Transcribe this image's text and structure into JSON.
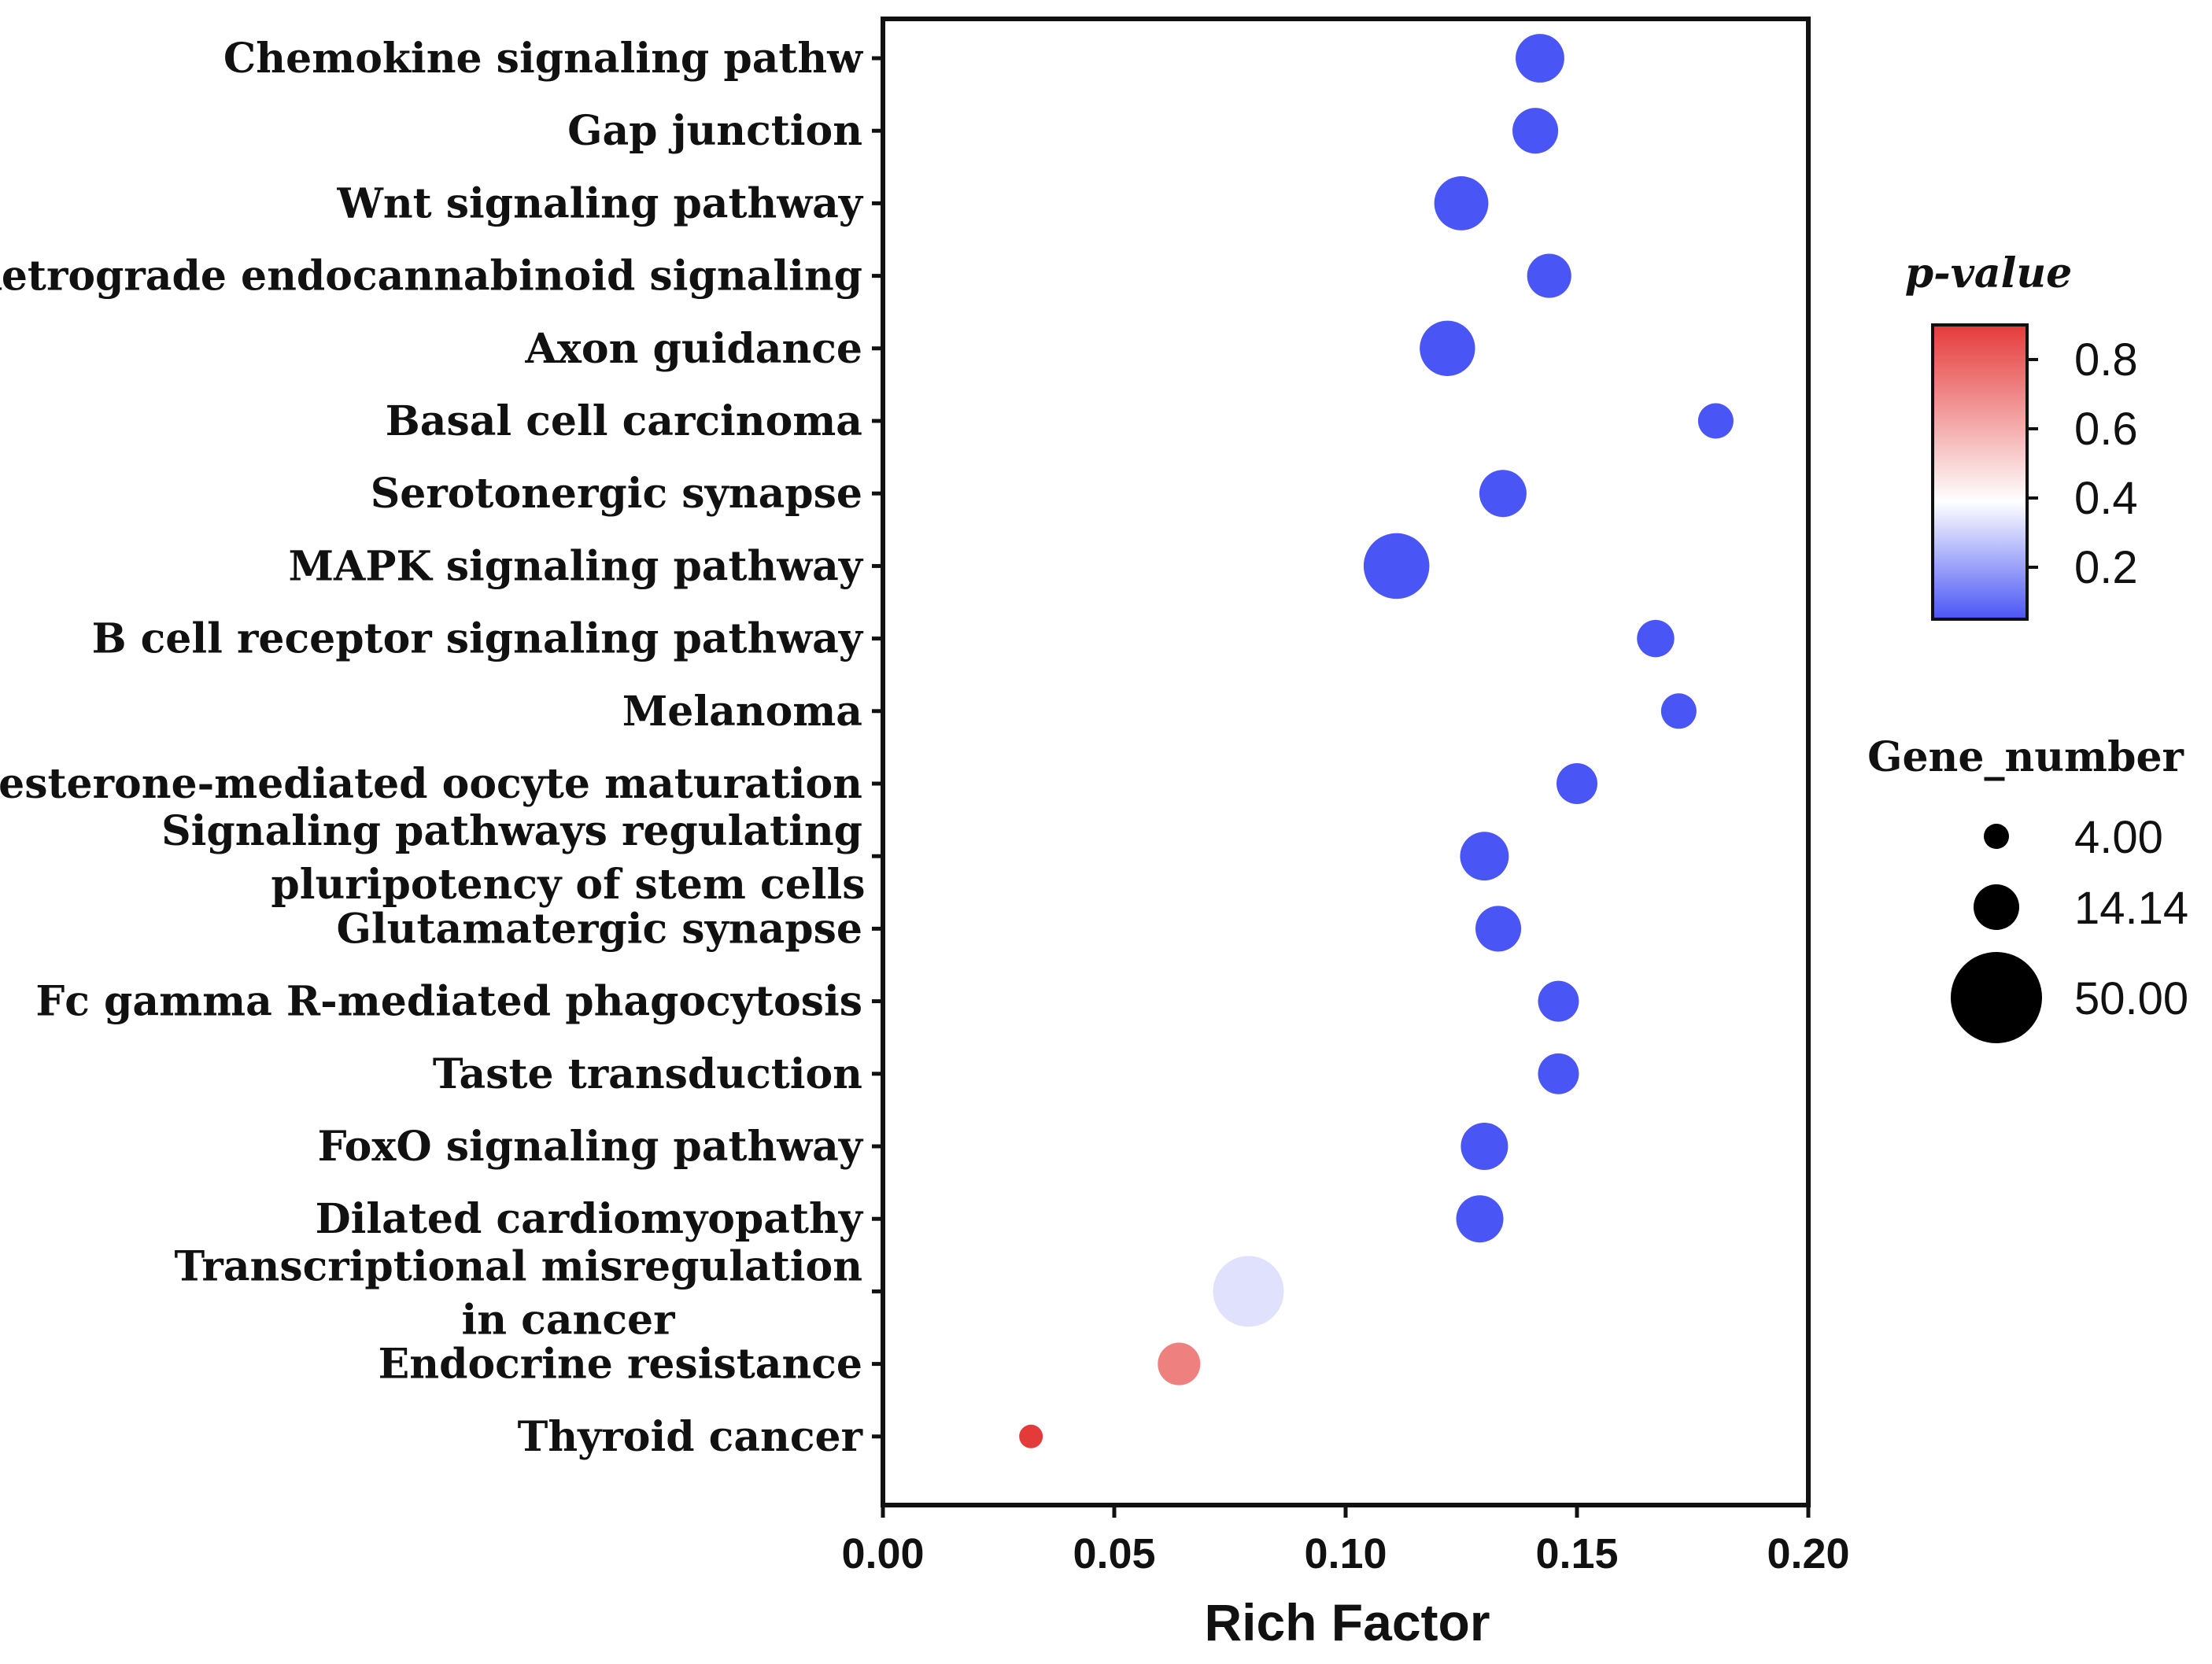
{
  "chart_data": {
    "type": "scatter",
    "subtype": "bubble",
    "xlabel": "Rich Factor",
    "xlim": [
      0,
      0.2
    ],
    "xticks": [
      "0.00",
      "0.05",
      "0.10",
      "0.15",
      "0.20"
    ],
    "categories": [
      {
        "lines": [
          "Chemokine signaling pathw"
        ],
        "rich_factor": 0.142,
        "p_value": 0.05,
        "gene_number": 17
      },
      {
        "lines": [
          "Gap junction"
        ],
        "rich_factor": 0.141,
        "p_value": 0.05,
        "gene_number": 15
      },
      {
        "lines": [
          "Wnt signaling pathway"
        ],
        "rich_factor": 0.125,
        "p_value": 0.05,
        "gene_number": 21
      },
      {
        "lines": [
          "Retrograde endocannabinoid signaling"
        ],
        "rich_factor": 0.144,
        "p_value": 0.05,
        "gene_number": 14
      },
      {
        "lines": [
          "Axon guidance"
        ],
        "rich_factor": 0.122,
        "p_value": 0.05,
        "gene_number": 22
      },
      {
        "lines": [
          "Basal cell carcinoma"
        ],
        "rich_factor": 0.18,
        "p_value": 0.05,
        "gene_number": 9
      },
      {
        "lines": [
          "Serotonergic synapse"
        ],
        "rich_factor": 0.134,
        "p_value": 0.05,
        "gene_number": 16
      },
      {
        "lines": [
          "MAPK signaling pathway"
        ],
        "rich_factor": 0.111,
        "p_value": 0.05,
        "gene_number": 31
      },
      {
        "lines": [
          "B cell receptor signaling pathway"
        ],
        "rich_factor": 0.167,
        "p_value": 0.05,
        "gene_number": 10
      },
      {
        "lines": [
          "Melanoma"
        ],
        "rich_factor": 0.172,
        "p_value": 0.05,
        "gene_number": 9
      },
      {
        "lines": [
          "Progesterone-mediated oocyte maturation"
        ],
        "rich_factor": 0.15,
        "p_value": 0.05,
        "gene_number": 12
      },
      {
        "lines": [
          "Signaling pathways regulating",
          "pluripotency of stem cells"
        ],
        "rich_factor": 0.13,
        "p_value": 0.05,
        "gene_number": 17
      },
      {
        "lines": [
          "Glutamatergic synapse"
        ],
        "rich_factor": 0.133,
        "p_value": 0.05,
        "gene_number": 15
      },
      {
        "lines": [
          "Fc gamma R-mediated phagocytosis"
        ],
        "rich_factor": 0.146,
        "p_value": 0.05,
        "gene_number": 12
      },
      {
        "lines": [
          "Taste transduction"
        ],
        "rich_factor": 0.146,
        "p_value": 0.05,
        "gene_number": 12
      },
      {
        "lines": [
          "FoxO signaling pathway"
        ],
        "rich_factor": 0.13,
        "p_value": 0.05,
        "gene_number": 16
      },
      {
        "lines": [
          "Dilated cardiomyopathy"
        ],
        "rich_factor": 0.129,
        "p_value": 0.05,
        "gene_number": 16
      },
      {
        "lines": [
          "Transcriptional misregulation",
          "in cancer"
        ],
        "rich_factor": 0.079,
        "p_value": 0.33,
        "gene_number": 36
      },
      {
        "lines": [
          "Endocrine resistance"
        ],
        "rich_factor": 0.064,
        "p_value": 0.72,
        "gene_number": 13
      },
      {
        "lines": [
          "Thyroid cancer"
        ],
        "rich_factor": 0.032,
        "p_value": 0.9,
        "gene_number": 4
      }
    ],
    "color_legend": {
      "title": "p-value",
      "range": [
        0.05,
        0.9
      ],
      "ticks": [
        {
          "value": 0.8,
          "label": "0.8"
        },
        {
          "value": 0.6,
          "label": "0.6"
        },
        {
          "value": 0.4,
          "label": "0.4"
        },
        {
          "value": 0.2,
          "label": "0.2"
        }
      ],
      "colors": {
        "high": "#e53a3a",
        "mid": "#ffffff",
        "low": "#4a55f5"
      }
    },
    "size_legend": {
      "title": "Gene_number",
      "entries": [
        {
          "value": 4,
          "label": "4.00"
        },
        {
          "value": 14.14,
          "label": "14.14"
        },
        {
          "value": 50,
          "label": "50.00"
        }
      ]
    }
  }
}
